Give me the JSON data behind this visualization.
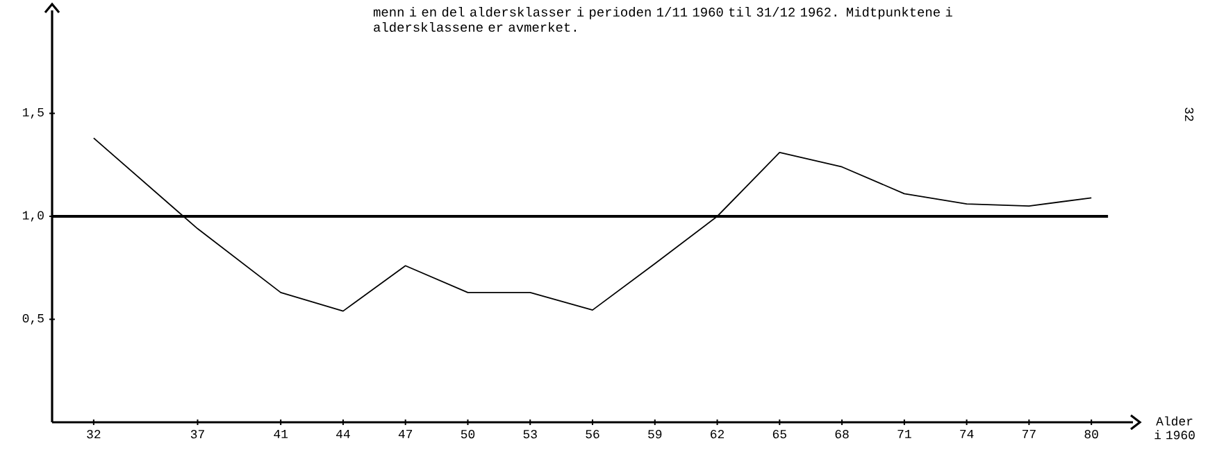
{
  "chart_data": {
    "type": "line",
    "title": "menn i en del aldersklasser i perioden 1/11 1960 til 31/12 1962. Midtpunktene i aldersklassene er avmerket.",
    "xlabel": "Alder i 1960",
    "x": [
      32,
      37,
      41,
      44,
      47,
      50,
      53,
      56,
      59,
      62,
      65,
      68,
      71,
      74,
      77,
      80
    ],
    "values": [
      1.38,
      0.94,
      0.63,
      0.54,
      0.76,
      0.63,
      0.63,
      0.545,
      0.77,
      1.0,
      1.31,
      1.24,
      1.11,
      1.06,
      1.05,
      1.09
    ],
    "color": "#000000",
    "xlim": [
      30,
      82
    ],
    "ylim": [
      0,
      2.0
    ],
    "xticks": [
      32,
      37,
      41,
      44,
      47,
      50,
      53,
      56,
      59,
      62,
      65,
      68,
      71,
      74,
      77,
      80
    ],
    "yticks": [
      {
        "value": 0.5,
        "label": "0,5"
      },
      {
        "value": 1.0,
        "label": "1,0"
      },
      {
        "value": 1.5,
        "label": "1,5"
      }
    ],
    "ref_lines": [
      {
        "axis": "y",
        "value": 1.0,
        "color": "#000000"
      }
    ],
    "annotations": [
      "32"
    ],
    "grid": false
  }
}
